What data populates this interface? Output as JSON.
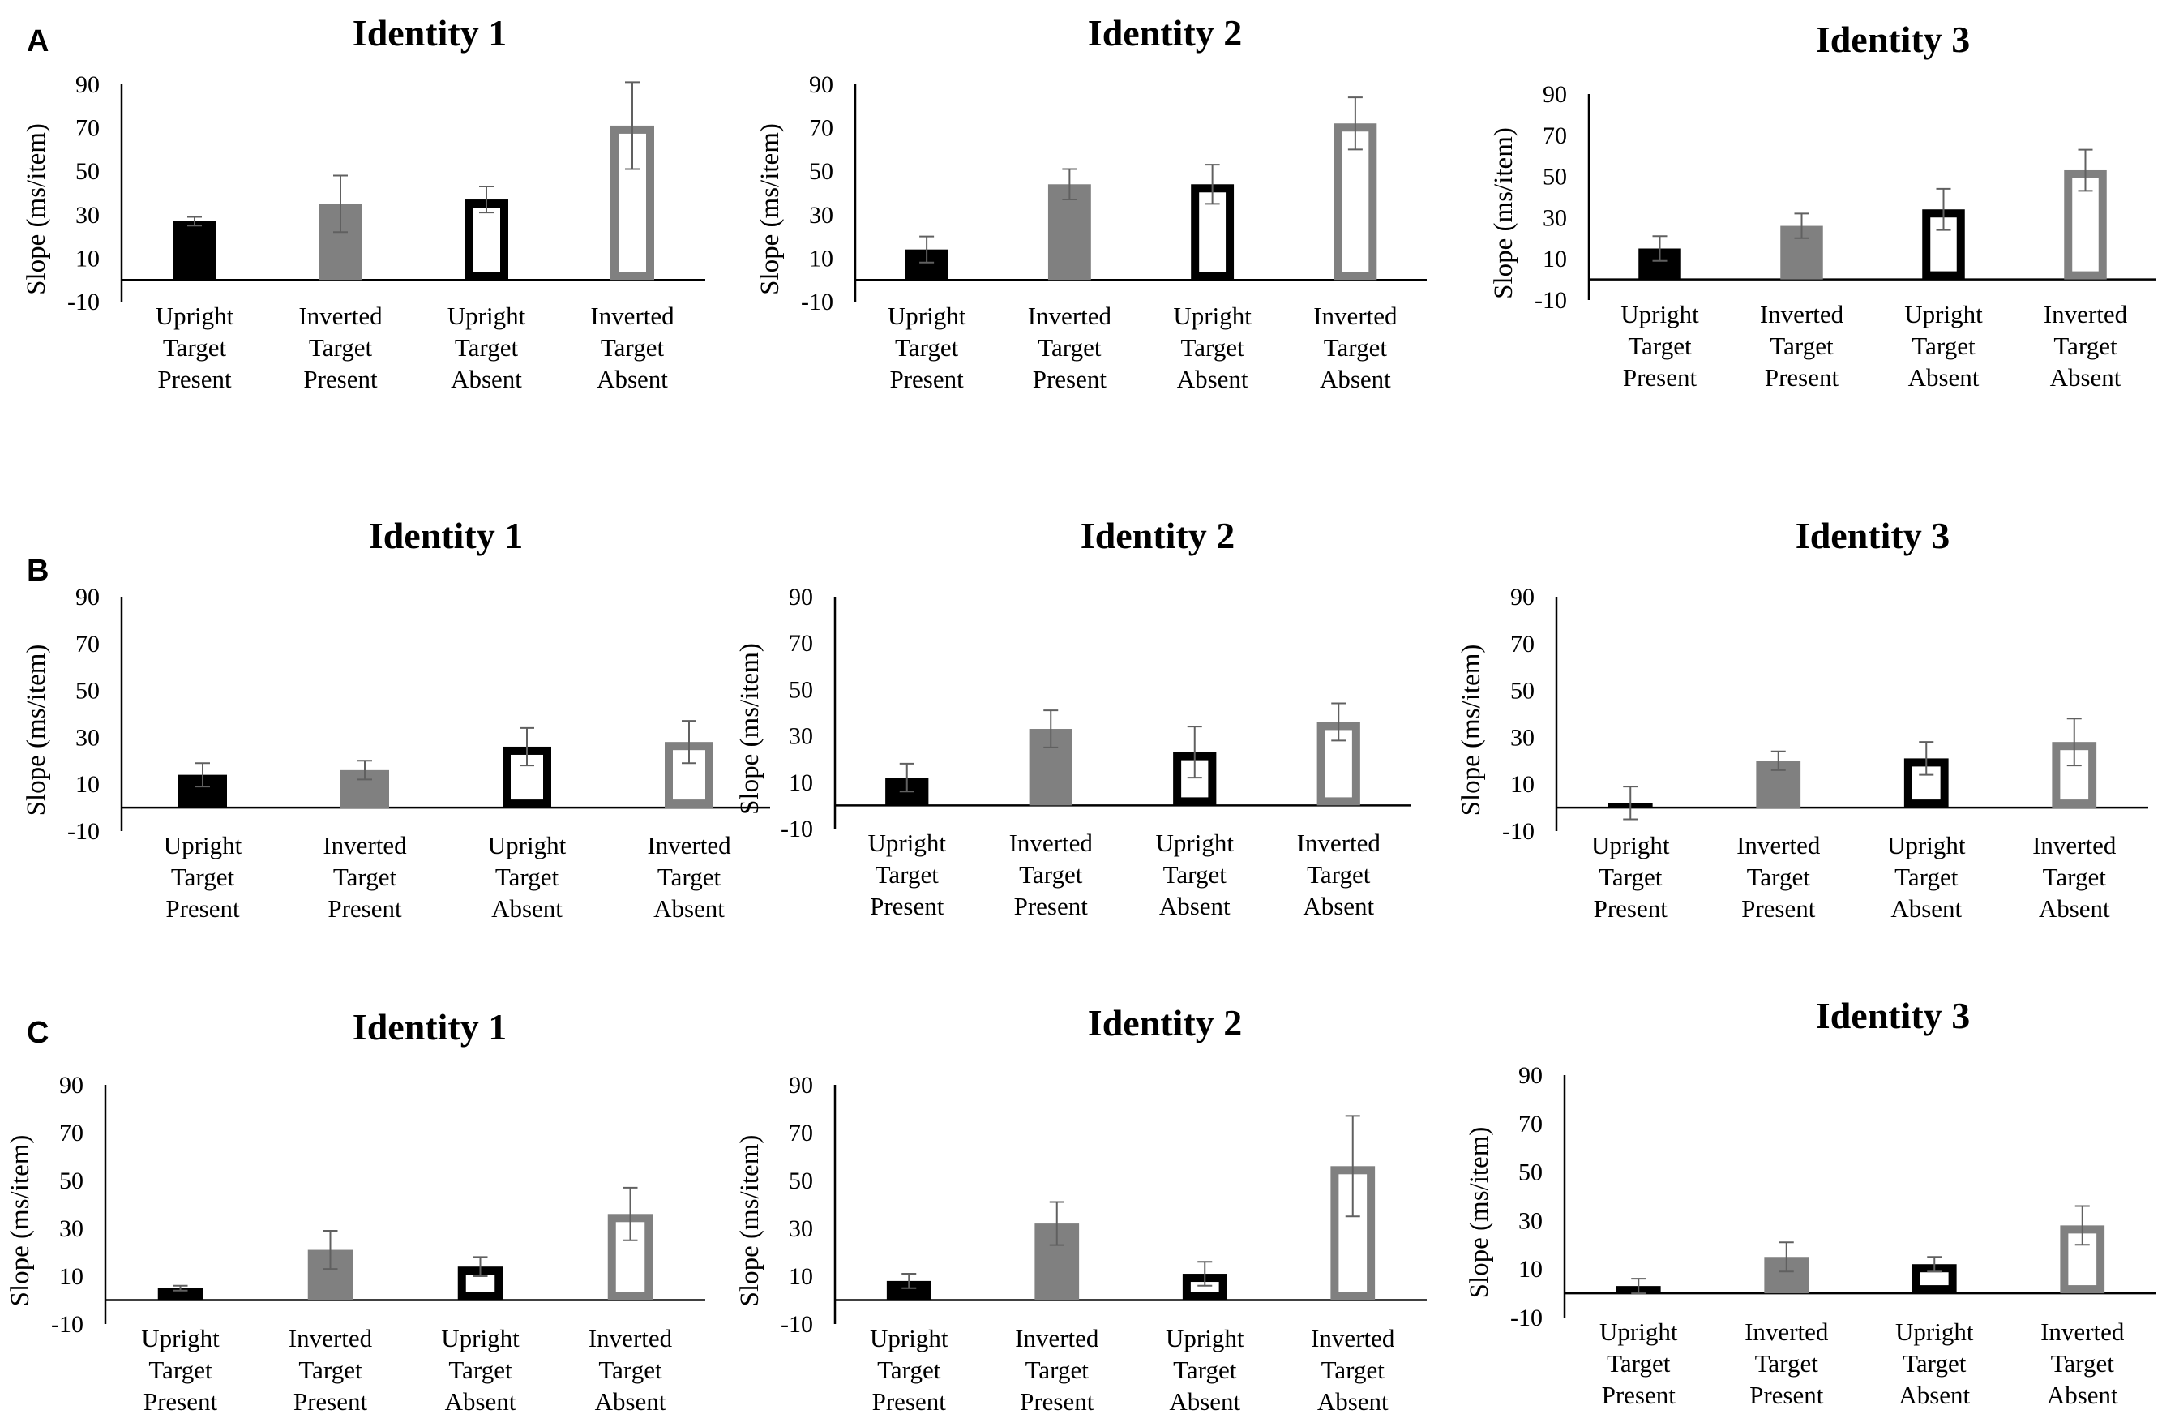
{
  "row_labels": [
    "A",
    "B",
    "C"
  ],
  "colors": {
    "upright": "#000000",
    "inverted": "#808080",
    "error_bar": "#606060"
  },
  "chart_data": [
    {
      "panel": "A",
      "type": "bar",
      "title": "Identity 1",
      "ylabel": "Slope (ms/item)",
      "ylim": [
        -10,
        90
      ],
      "yticks": [
        90,
        70,
        50,
        30,
        10,
        -10
      ],
      "categories": [
        [
          "Upright",
          "Target",
          "Present"
        ],
        [
          "Inverted",
          "Target",
          "Present"
        ],
        [
          "Upright",
          "Target",
          "Absent"
        ],
        [
          "Inverted",
          "Target",
          "Absent"
        ]
      ],
      "values": [
        27,
        35,
        37,
        71
      ],
      "errors": [
        2,
        13,
        6,
        20
      ],
      "styles": [
        "filled-black",
        "filled-gray",
        "outline-black",
        "outline-gray"
      ]
    },
    {
      "panel": "A",
      "type": "bar",
      "title": "Identity 2",
      "ylabel": "Slope (ms/item)",
      "ylim": [
        -10,
        90
      ],
      "yticks": [
        90,
        70,
        50,
        30,
        10,
        -10
      ],
      "categories": [
        [
          "Upright",
          "Target",
          "Present"
        ],
        [
          "Inverted",
          "Target",
          "Present"
        ],
        [
          "Upright",
          "Target",
          "Absent"
        ],
        [
          "Inverted",
          "Target",
          "Absent"
        ]
      ],
      "values": [
        14,
        44,
        44,
        72
      ],
      "errors": [
        6,
        7,
        9,
        12
      ],
      "styles": [
        "filled-black",
        "filled-gray",
        "outline-black",
        "outline-gray"
      ]
    },
    {
      "panel": "A",
      "type": "bar",
      "title": "Identity 3",
      "ylabel": "Slope (ms/item)",
      "ylim": [
        -10,
        90
      ],
      "yticks": [
        90,
        70,
        50,
        30,
        10,
        -10
      ],
      "categories": [
        [
          "Upright",
          "Target",
          "Present"
        ],
        [
          "Inverted",
          "Target",
          "Present"
        ],
        [
          "Upright",
          "Target",
          "Absent"
        ],
        [
          "Inverted",
          "Target",
          "Absent"
        ]
      ],
      "values": [
        15,
        26,
        34,
        53
      ],
      "errors": [
        6,
        6,
        10,
        10
      ],
      "styles": [
        "filled-black",
        "filled-gray",
        "outline-black",
        "outline-gray"
      ]
    },
    {
      "panel": "B",
      "type": "bar",
      "title": "Identity 1",
      "ylabel": "Slope (ms/item)",
      "ylim": [
        -10,
        90
      ],
      "yticks": [
        90,
        70,
        50,
        30,
        10,
        -10
      ],
      "categories": [
        [
          "Upright",
          "Target",
          "Present"
        ],
        [
          "Inverted",
          "Target",
          "Present"
        ],
        [
          "Upright",
          "Target",
          "Absent"
        ],
        [
          "Inverted",
          "Target",
          "Absent"
        ]
      ],
      "values": [
        14,
        16,
        26,
        28
      ],
      "errors": [
        5,
        4,
        8,
        9
      ],
      "styles": [
        "filled-black",
        "filled-gray",
        "outline-black",
        "outline-gray"
      ]
    },
    {
      "panel": "B",
      "type": "bar",
      "title": "Identity 2",
      "ylabel": "Slope (ms/item)",
      "ylim": [
        -10,
        90
      ],
      "yticks": [
        90,
        70,
        50,
        30,
        10,
        -10
      ],
      "categories": [
        [
          "Upright",
          "Target",
          "Present"
        ],
        [
          "Inverted",
          "Target",
          "Present"
        ],
        [
          "Upright",
          "Target",
          "Absent"
        ],
        [
          "Inverted",
          "Target",
          "Absent"
        ]
      ],
      "values": [
        12,
        33,
        23,
        36
      ],
      "errors": [
        6,
        8,
        11,
        8
      ],
      "styles": [
        "filled-black",
        "filled-gray",
        "outline-black",
        "outline-gray"
      ]
    },
    {
      "panel": "B",
      "type": "bar",
      "title": "Identity 3",
      "ylabel": "Slope (ms/item)",
      "ylim": [
        -10,
        90
      ],
      "yticks": [
        90,
        70,
        50,
        30,
        10,
        -10
      ],
      "categories": [
        [
          "Upright",
          "Target",
          "Present"
        ],
        [
          "Inverted",
          "Target",
          "Present"
        ],
        [
          "Upright",
          "Target",
          "Absent"
        ],
        [
          "Inverted",
          "Target",
          "Absent"
        ]
      ],
      "values": [
        2,
        20,
        21,
        28
      ],
      "errors": [
        7,
        4,
        7,
        10
      ],
      "styles": [
        "filled-black",
        "filled-gray",
        "outline-black",
        "outline-gray"
      ]
    },
    {
      "panel": "C",
      "type": "bar",
      "title": "Identity 1",
      "ylabel": "Slope (ms/item)",
      "ylim": [
        -10,
        90
      ],
      "yticks": [
        90,
        70,
        50,
        30,
        10,
        -10
      ],
      "categories": [
        [
          "Upright",
          "Target",
          "Present"
        ],
        [
          "Inverted",
          "Target",
          "Present"
        ],
        [
          "Upright",
          "Target",
          "Absent"
        ],
        [
          "Inverted",
          "Target",
          "Absent"
        ]
      ],
      "values": [
        5,
        21,
        14,
        36
      ],
      "errors": [
        1,
        8,
        4,
        11
      ],
      "styles": [
        "filled-black",
        "filled-gray",
        "outline-black",
        "outline-gray"
      ]
    },
    {
      "panel": "C",
      "type": "bar",
      "title": "Identity 2",
      "ylabel": "Slope (ms/item)",
      "ylim": [
        -10,
        90
      ],
      "yticks": [
        90,
        70,
        50,
        30,
        10,
        -10
      ],
      "categories": [
        [
          "Upright",
          "Target",
          "Present"
        ],
        [
          "Inverted",
          "Target",
          "Present"
        ],
        [
          "Upright",
          "Target",
          "Absent"
        ],
        [
          "Inverted",
          "Target",
          "Absent"
        ]
      ],
      "values": [
        8,
        32,
        11,
        56
      ],
      "errors": [
        3,
        9,
        5,
        21
      ],
      "styles": [
        "filled-black",
        "filled-gray",
        "outline-black",
        "outline-gray"
      ]
    },
    {
      "panel": "C",
      "type": "bar",
      "title": "Identity 3",
      "ylabel": "Slope (ms/item)",
      "ylim": [
        -10,
        90
      ],
      "yticks": [
        90,
        70,
        50,
        30,
        10,
        -10
      ],
      "categories": [
        [
          "Upright",
          "Target",
          "Present"
        ],
        [
          "Inverted",
          "Target",
          "Present"
        ],
        [
          "Upright",
          "Target",
          "Absent"
        ],
        [
          "Inverted",
          "Target",
          "Absent"
        ]
      ],
      "values": [
        3,
        15,
        12,
        28
      ],
      "errors": [
        3,
        6,
        3,
        8
      ],
      "styles": [
        "filled-black",
        "filled-gray",
        "outline-black",
        "outline-gray"
      ]
    }
  ]
}
